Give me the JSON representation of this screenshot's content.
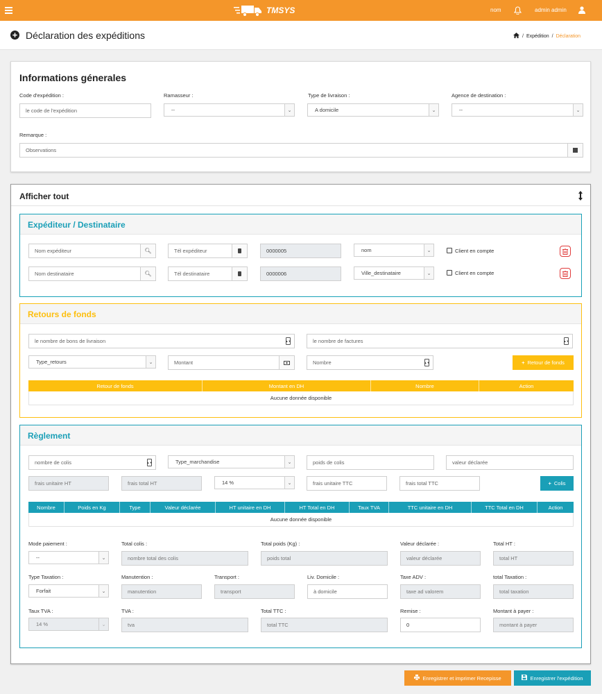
{
  "topbar": {
    "brand": "TMSYS",
    "nom": "nom",
    "user": "admin admin"
  },
  "page": {
    "title": "Déclaration des expéditions",
    "breadcrumb": {
      "sep": "/",
      "expedition": "Expédition",
      "declaration": "Déclaration"
    }
  },
  "info": {
    "title": "Informations génerales",
    "code_label": "Code d'expédition :",
    "code_placeholder": "le code de l'expédition",
    "ramasseur_label": "Ramasseur :",
    "ramasseur_value": "--",
    "type_livraison_label": "Type de livraison :",
    "type_livraison_value": "A domicile",
    "agence_label": "Agence de destination :",
    "agence_value": "--",
    "remarque_label": "Remarque :",
    "remarque_placeholder": "Observations"
  },
  "afficher": {
    "title": "Afficher tout"
  },
  "exp": {
    "title": "Expéditeur / Destinataire",
    "nom_exp_placeholder": "Nom expéditeur",
    "tel_exp_placeholder": "Tél expéditeur",
    "code_exp": "0000005",
    "nom_select": "nom",
    "nom_dest_placeholder": "Nom destinataire",
    "tel_dest_placeholder": "Tél destinataire",
    "code_dest": "0000006",
    "ville_select": "Ville_destinataire",
    "client_label": "Client en compte"
  },
  "retours": {
    "title": "Retours de fonds",
    "bons_placeholder": "le nombre de bons de livraison",
    "factures_placeholder": "le nombre de factures",
    "type_retours": "Type_retours",
    "montant_placeholder": "Montant",
    "nombre_placeholder": "Nombre",
    "button": "Retour de fonds",
    "columns": [
      "Retour de fonds",
      "Montant en DH",
      "Nombre",
      "Action"
    ],
    "empty": "Aucune donnée disponible"
  },
  "reglement": {
    "title": "Règlement",
    "nb_colis_placeholder": "nombre de colis",
    "type_marchandise": "Type_marchandise",
    "poids_placeholder": "poids de colis",
    "valeur_placeholder": "valeur déclarée",
    "frais_u_ht": "frais unitaire HT",
    "frais_t_ht": "frais total HT",
    "tva_select": "14 %",
    "frais_u_ttc": "frais unitaire TTC",
    "frais_t_ttc": "frais total TTC",
    "button": "Colis",
    "columns": [
      "Nombre",
      "Poids en Kg",
      "Type",
      "Valeur déclarée",
      "HT unitaire en DH",
      "HT Total en DH",
      "Taux TVA",
      "TTC unitaire en DH",
      "TTC Total en DH",
      "Action"
    ],
    "empty": "Aucune donnée disponible",
    "mode_paiement_label": "Mode paiement :",
    "mode_paiement_value": "--",
    "total_colis_label": "Total colis :",
    "total_colis_placeholder": "nombre total des colis",
    "total_poids_label": "Total poids (Kg) :",
    "total_poids_placeholder": "poids total",
    "valeur_decl_label": "Valeur déclarée :",
    "valeur_decl_placeholder": "valeur déclarée",
    "total_ht_label": "Total HT :",
    "total_ht_placeholder": "total HT",
    "type_taxation_label": "Type Taxation :",
    "type_taxation_value": "Forfait",
    "manutention_label": "Manutention :",
    "manutention_placeholder": "manutention",
    "transport_label": "Transport :",
    "transport_placeholder": "transport",
    "liv_domicile_label": "Liv. Domicile :",
    "liv_domicile_placeholder": "à domicile",
    "taxe_adv_label": "Taxe ADV :",
    "taxe_adv_placeholder": "taxe ad valorem",
    "total_taxation_label": "total Taxation :",
    "total_taxation_placeholder": "total taxation",
    "taux_tva_label": "Taux TVA :",
    "taux_tva_value": "14 %",
    "tva_label": "TVA :",
    "tva_placeholder": "tva",
    "total_ttc_label": "Total TTC :",
    "total_ttc_placeholder": "total TTC",
    "remise_label": "Remise :",
    "remise_value": "0",
    "montant_payer_label": "Montant à payer :",
    "montant_payer_placeholder": "montant à payer"
  },
  "footer": {
    "save_print": "Enregistrer et imprimer Recepisse",
    "save": "Enregistrer l'expédition"
  },
  "colors": {
    "orange": "#f4962a",
    "teal": "#1a9fb7",
    "amber": "#fdbf0f",
    "red": "#e03c3c"
  }
}
